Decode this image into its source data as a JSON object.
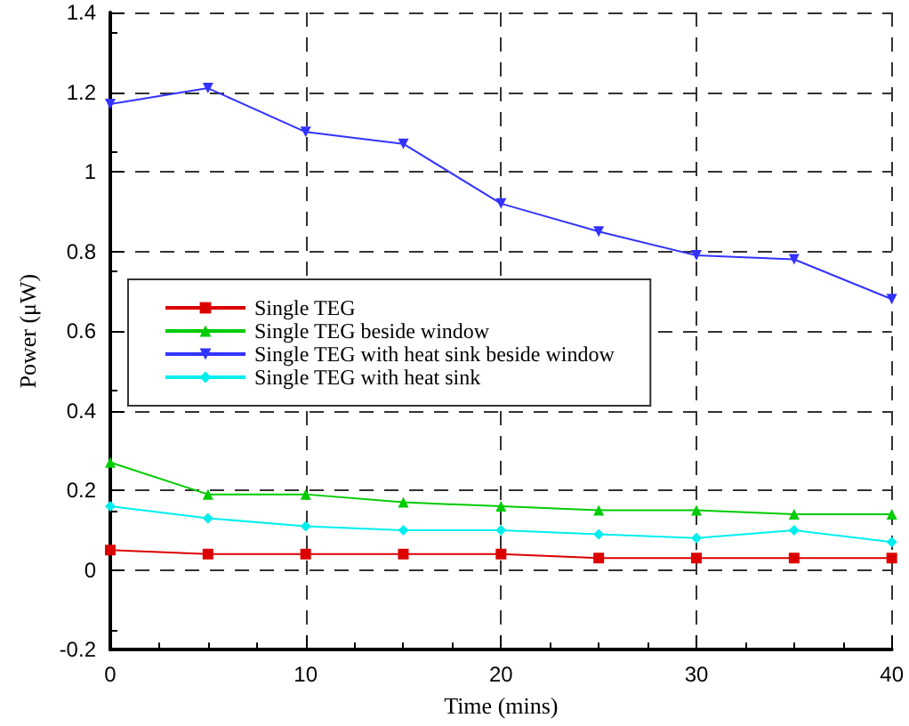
{
  "chart_data": {
    "type": "line",
    "xlabel": "Time (mins)",
    "ylabel": "Power (μW)",
    "x": [
      0,
      5,
      10,
      15,
      20,
      25,
      30,
      35,
      40
    ],
    "series": [
      {
        "name": "Single TEG",
        "color": "#dd0000",
        "marker": "square",
        "values": [
          0.05,
          0.04,
          0.04,
          0.04,
          0.04,
          0.03,
          0.03,
          0.03,
          0.03
        ]
      },
      {
        "name": "Single TEG beside window",
        "color": "#00cc00",
        "marker": "triangle",
        "values": [
          0.27,
          0.19,
          0.19,
          0.17,
          0.16,
          0.15,
          0.15,
          0.14,
          0.14
        ]
      },
      {
        "name": "Single TEG with heat sink beside window",
        "color": "#3333ff",
        "marker": "triangle-down",
        "values": [
          1.17,
          1.21,
          1.1,
          1.07,
          0.92,
          0.85,
          0.79,
          0.78,
          0.68
        ]
      },
      {
        "name": "Single TEG with heat sink",
        "color": "#00eeee",
        "marker": "diamond",
        "values": [
          0.16,
          0.13,
          0.11,
          0.1,
          0.1,
          0.09,
          0.08,
          0.1,
          0.07
        ]
      }
    ],
    "xlim": [
      0,
      40
    ],
    "xticks": [
      0,
      10,
      20,
      30,
      40
    ],
    "ylim": [
      -0.2,
      1.4
    ],
    "yticks": [
      -0.2,
      0,
      0.2,
      0.4,
      0.6,
      0.8,
      1,
      1.2,
      1.4
    ],
    "grid": true,
    "legend": "left",
    "line_style": "solid"
  }
}
